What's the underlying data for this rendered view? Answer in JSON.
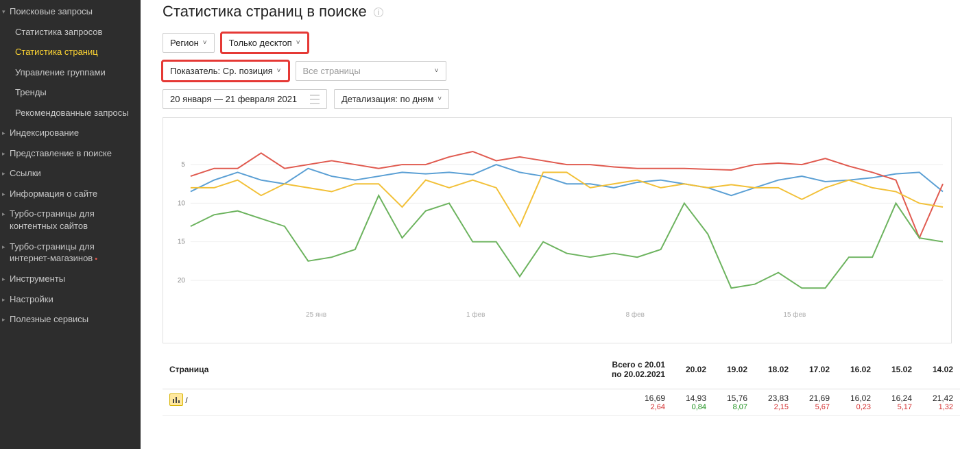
{
  "sidebar": {
    "items": [
      {
        "label": "Поисковые запросы",
        "caret": true,
        "open": true
      },
      {
        "label": "Статистика запросов",
        "sub": true
      },
      {
        "label": "Статистика страниц",
        "sub": true,
        "active": true
      },
      {
        "label": "Управление группами",
        "sub": true
      },
      {
        "label": "Тренды",
        "sub": true
      },
      {
        "label": "Рекомендованные запросы",
        "sub": true
      },
      {
        "label": "Индексирование",
        "caret": true
      },
      {
        "label": "Представление в поиске",
        "caret": true
      },
      {
        "label": "Ссылки",
        "caret": true
      },
      {
        "label": "Информация о сайте",
        "caret": true
      },
      {
        "label": "Турбо-страницы для контентных сайтов",
        "caret": true
      },
      {
        "label": "Турбо-страницы для интернет-магазинов",
        "caret": true,
        "dot": true
      },
      {
        "label": "Инструменты",
        "caret": true
      },
      {
        "label": "Настройки",
        "caret": true
      },
      {
        "label": "Полезные сервисы",
        "caret": true
      }
    ]
  },
  "title": "Статистика страниц в поиске",
  "filters": {
    "region": "Регион",
    "device": "Только десктоп",
    "metric": "Показатель: Ср. позиция",
    "pages_placeholder": "Все страницы",
    "date_range": "20 января — 21 февраля 2021",
    "granularity": "Детализация: по дням"
  },
  "chart": {
    "type": "line",
    "background_color": "#ffffff",
    "grid_color": "#eeeeee",
    "ylim": [
      0,
      23
    ],
    "yticks": [
      5,
      10,
      15,
      20
    ],
    "xticks": [
      "25 янв",
      "1 фев",
      "8 фев",
      "15 фев"
    ],
    "xtick_positions": [
      0.167,
      0.379,
      0.591,
      0.803
    ],
    "series_colors": {
      "s1": "#5a9fd4",
      "s2": "#e05a4f",
      "s3": "#f2c037",
      "s4": "#6cb35e"
    },
    "n_points": 33,
    "series": {
      "s1": [
        8.5,
        7,
        6,
        7,
        7.5,
        5.5,
        6.5,
        7,
        6.5,
        6,
        6.2,
        6,
        6.3,
        5,
        6,
        6.5,
        7.5,
        7.5,
        8,
        7.3,
        7,
        7.5,
        8,
        9,
        8,
        7,
        6.5,
        7.2,
        7,
        6.7,
        6.2,
        6,
        8.5
      ],
      "s2": [
        6.5,
        5.5,
        5.5,
        3.5,
        5.5,
        5,
        4.5,
        5,
        5.5,
        5,
        5,
        4,
        3.3,
        4.5,
        4,
        4.5,
        5,
        5,
        5.3,
        5.5,
        5.5,
        5.5,
        5.6,
        5.7,
        5,
        4.8,
        5,
        4.2,
        5.2,
        6,
        7,
        14.5,
        7.5
      ],
      "s3": [
        8,
        8,
        7,
        9,
        7.5,
        8,
        8.5,
        7.5,
        7.5,
        10.5,
        7,
        8,
        7,
        8,
        13,
        6,
        6,
        8,
        7.5,
        7,
        8,
        7.5,
        8,
        7.6,
        8,
        8,
        9.5,
        8,
        7,
        8,
        8.5,
        10,
        10.5
      ],
      "s4": [
        13,
        11.5,
        11,
        12,
        13,
        17.5,
        17,
        16,
        9,
        14.5,
        11,
        10,
        15,
        15,
        19.5,
        15,
        16.5,
        17,
        16.5,
        17,
        16,
        10,
        14,
        21,
        20.5,
        19,
        21,
        21,
        17,
        17,
        10,
        14.5,
        15
      ]
    }
  },
  "table": {
    "col_page": "Страница",
    "col_total": "Всего с 20.01 по 20.02.2021",
    "dates": [
      "20.02",
      "19.02",
      "18.02",
      "17.02",
      "16.02",
      "15.02",
      "14.02"
    ],
    "rows": [
      {
        "page": "/",
        "total": {
          "v": "16,69",
          "d": "2,64",
          "neg": true
        },
        "cells": [
          {
            "v": "14,93",
            "d": "0,84",
            "neg": false
          },
          {
            "v": "15,76",
            "d": "8,07",
            "neg": false
          },
          {
            "v": "23,83",
            "d": "2,15",
            "neg": true
          },
          {
            "v": "21,69",
            "d": "5,67",
            "neg": true
          },
          {
            "v": "16,02",
            "d": "0,23",
            "neg": true
          },
          {
            "v": "16,24",
            "d": "5,17",
            "neg": true
          },
          {
            "v": "21,42",
            "d": "1,32",
            "neg": true
          }
        ]
      }
    ]
  }
}
